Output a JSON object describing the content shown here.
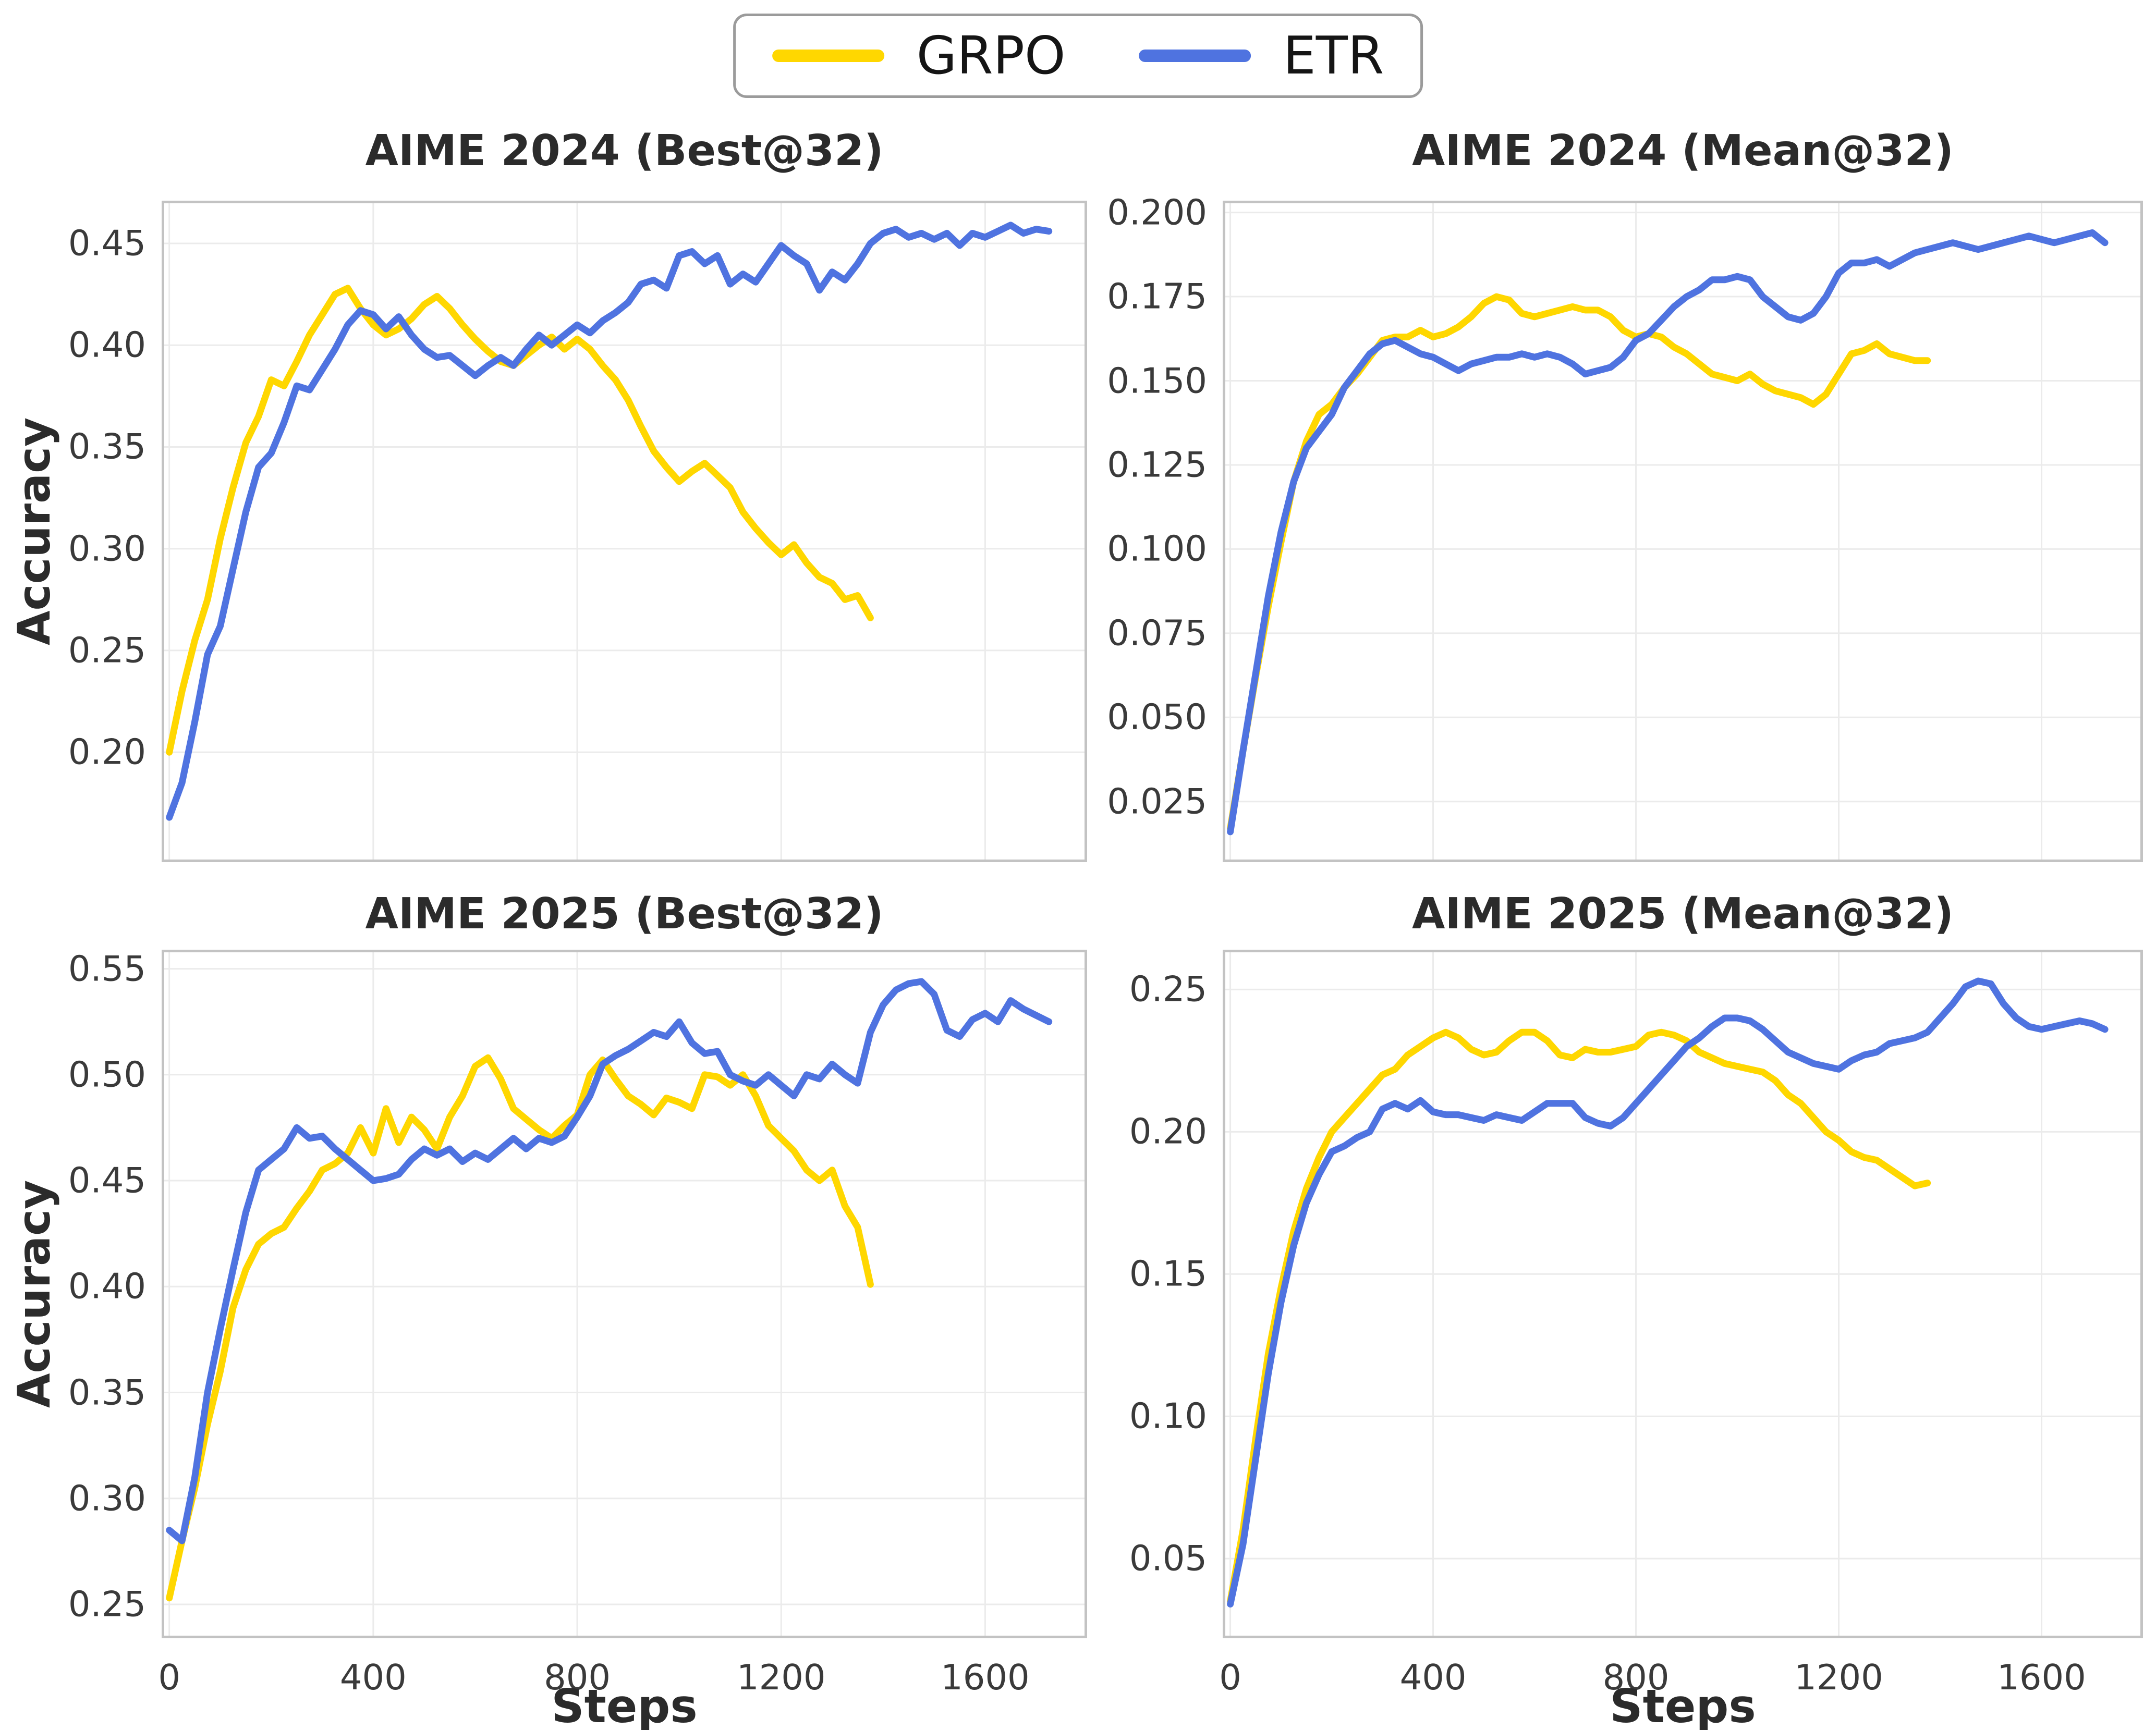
{
  "style": {
    "background": "#ffffff",
    "grid_color": "#ebebeb",
    "spine_color": "#c3c3c3",
    "tick_text_color": "#3a3a3a",
    "title_text_color": "#2b2b2b",
    "accent_grpo": "#FFD700",
    "accent_etr": "#4F73E0"
  },
  "legend": {
    "position": "top-center",
    "items": [
      {
        "label": "GRPO",
        "color": "#FFD700"
      },
      {
        "label": "ETR",
        "color": "#4F73E0"
      }
    ]
  },
  "chart_data": [
    {
      "type": "line",
      "title": "AIME 2024 (Best@32)",
      "ylabel": "Accuracy",
      "grid": true,
      "xlim": [
        -15,
        1800
      ],
      "ylim": [
        0.146,
        0.471
      ],
      "x_ticks": [
        0,
        400,
        800,
        1200,
        1600
      ],
      "x_tick_labels": [
        "0",
        "400",
        "800",
        "1200",
        "1600"
      ],
      "show_x_tick_labels": false,
      "y_ticks": [
        0.2,
        0.25,
        0.3,
        0.35,
        0.4,
        0.45
      ],
      "y_tick_labels": [
        "0.20",
        "0.25",
        "0.30",
        "0.35",
        "0.40",
        "0.45"
      ],
      "x_start": 0,
      "x_step": 25,
      "series": [
        {
          "name": "GRPO",
          "color": "#FFD700",
          "y": [
            0.2,
            0.23,
            0.255,
            0.275,
            0.305,
            0.33,
            0.352,
            0.365,
            0.383,
            0.38,
            0.392,
            0.405,
            0.415,
            0.425,
            0.428,
            0.418,
            0.41,
            0.405,
            0.408,
            0.413,
            0.42,
            0.424,
            0.418,
            0.41,
            0.403,
            0.397,
            0.392,
            0.39,
            0.395,
            0.4,
            0.404,
            0.398,
            0.403,
            0.398,
            0.39,
            0.383,
            0.373,
            0.36,
            0.348,
            0.34,
            0.333,
            0.338,
            0.342,
            0.336,
            0.33,
            0.318,
            0.31,
            0.303,
            0.297,
            0.302,
            0.293,
            0.286,
            0.283,
            0.275,
            0.277,
            0.266
          ]
        },
        {
          "name": "ETR",
          "color": "#4F73E0",
          "y": [
            0.168,
            0.185,
            0.215,
            0.248,
            0.262,
            0.29,
            0.318,
            0.34,
            0.347,
            0.362,
            0.38,
            0.378,
            0.388,
            0.398,
            0.41,
            0.417,
            0.415,
            0.408,
            0.414,
            0.405,
            0.398,
            0.394,
            0.395,
            0.39,
            0.385,
            0.39,
            0.394,
            0.39,
            0.398,
            0.405,
            0.4,
            0.405,
            0.41,
            0.406,
            0.412,
            0.416,
            0.421,
            0.43,
            0.432,
            0.428,
            0.444,
            0.446,
            0.44,
            0.444,
            0.43,
            0.435,
            0.431,
            0.44,
            0.449,
            0.444,
            0.44,
            0.427,
            0.436,
            0.432,
            0.44,
            0.45,
            0.455,
            0.457,
            0.453,
            0.455,
            0.452,
            0.455,
            0.449,
            0.455,
            0.453,
            0.456,
            0.459,
            0.455,
            0.457,
            0.456
          ]
        }
      ]
    },
    {
      "type": "line",
      "title": "AIME 2024 (Mean@32)",
      "grid": true,
      "xlim": [
        -15,
        1800
      ],
      "ylim": [
        0.007,
        0.2035
      ],
      "x_ticks": [
        0,
        400,
        800,
        1200,
        1600
      ],
      "x_tick_labels": [
        "0",
        "400",
        "800",
        "1200",
        "1600"
      ],
      "show_x_tick_labels": false,
      "y_ticks": [
        0.025,
        0.05,
        0.075,
        0.1,
        0.125,
        0.15,
        0.175,
        0.2
      ],
      "y_tick_labels": [
        "0.025",
        "0.050",
        "0.075",
        "0.100",
        "0.125",
        "0.150",
        "0.175",
        "0.200"
      ],
      "x_start": 0,
      "x_step": 25,
      "series": [
        {
          "name": "GRPO",
          "color": "#FFD700",
          "y": [
            0.017,
            0.04,
            0.062,
            0.083,
            0.102,
            0.12,
            0.132,
            0.14,
            0.143,
            0.148,
            0.152,
            0.157,
            0.162,
            0.163,
            0.163,
            0.165,
            0.163,
            0.164,
            0.166,
            0.169,
            0.173,
            0.175,
            0.174,
            0.17,
            0.169,
            0.17,
            0.171,
            0.172,
            0.171,
            0.171,
            0.169,
            0.165,
            0.163,
            0.164,
            0.163,
            0.16,
            0.158,
            0.155,
            0.152,
            0.151,
            0.15,
            0.152,
            0.149,
            0.147,
            0.146,
            0.145,
            0.143,
            0.146,
            0.152,
            0.158,
            0.159,
            0.161,
            0.158,
            0.157,
            0.156,
            0.156
          ]
        },
        {
          "name": "ETR",
          "color": "#4F73E0",
          "y": [
            0.016,
            0.04,
            0.063,
            0.086,
            0.105,
            0.12,
            0.13,
            0.135,
            0.14,
            0.148,
            0.153,
            0.158,
            0.161,
            0.162,
            0.16,
            0.158,
            0.157,
            0.155,
            0.153,
            0.155,
            0.156,
            0.157,
            0.157,
            0.158,
            0.157,
            0.158,
            0.157,
            0.155,
            0.152,
            0.153,
            0.154,
            0.157,
            0.162,
            0.164,
            0.168,
            0.172,
            0.175,
            0.177,
            0.18,
            0.18,
            0.181,
            0.18,
            0.175,
            0.172,
            0.169,
            0.168,
            0.17,
            0.175,
            0.182,
            0.185,
            0.185,
            0.186,
            0.184,
            0.186,
            0.188,
            0.189,
            0.19,
            0.191,
            0.19,
            0.189,
            0.19,
            0.191,
            0.192,
            0.193,
            0.192,
            0.191,
            0.192,
            0.193,
            0.194,
            0.191
          ]
        }
      ]
    },
    {
      "type": "line",
      "title": "AIME 2025 (Best@32)",
      "ylabel": "Accuracy",
      "xlabel": "Steps",
      "grid": true,
      "xlim": [
        -15,
        1800
      ],
      "ylim": [
        0.234,
        0.559
      ],
      "x_ticks": [
        0,
        400,
        800,
        1200,
        1600
      ],
      "x_tick_labels": [
        "0",
        "400",
        "800",
        "1200",
        "1600"
      ],
      "show_x_tick_labels": true,
      "y_ticks": [
        0.25,
        0.3,
        0.35,
        0.4,
        0.45,
        0.5,
        0.55
      ],
      "y_tick_labels": [
        "0.25",
        "0.30",
        "0.35",
        "0.40",
        "0.45",
        "0.50",
        "0.55"
      ],
      "x_start": 0,
      "x_step": 25,
      "series": [
        {
          "name": "GRPO",
          "color": "#FFD700",
          "y": [
            0.253,
            0.28,
            0.305,
            0.335,
            0.36,
            0.39,
            0.408,
            0.42,
            0.425,
            0.428,
            0.437,
            0.445,
            0.455,
            0.458,
            0.463,
            0.475,
            0.463,
            0.484,
            0.468,
            0.48,
            0.474,
            0.465,
            0.48,
            0.49,
            0.504,
            0.508,
            0.498,
            0.484,
            0.479,
            0.474,
            0.47,
            0.476,
            0.481,
            0.5,
            0.507,
            0.498,
            0.49,
            0.486,
            0.481,
            0.489,
            0.487,
            0.484,
            0.5,
            0.499,
            0.495,
            0.5,
            0.49,
            0.476,
            0.47,
            0.464,
            0.455,
            0.45,
            0.455,
            0.438,
            0.428,
            0.401
          ]
        },
        {
          "name": "ETR",
          "color": "#4F73E0",
          "y": [
            0.285,
            0.28,
            0.31,
            0.35,
            0.38,
            0.408,
            0.435,
            0.455,
            0.46,
            0.465,
            0.475,
            0.47,
            0.471,
            0.465,
            0.46,
            0.455,
            0.45,
            0.451,
            0.453,
            0.46,
            0.465,
            0.462,
            0.465,
            0.459,
            0.463,
            0.46,
            0.465,
            0.47,
            0.465,
            0.47,
            0.468,
            0.471,
            0.48,
            0.49,
            0.505,
            0.509,
            0.512,
            0.516,
            0.52,
            0.518,
            0.525,
            0.515,
            0.51,
            0.511,
            0.5,
            0.497,
            0.495,
            0.5,
            0.495,
            0.49,
            0.5,
            0.498,
            0.505,
            0.5,
            0.496,
            0.52,
            0.533,
            0.54,
            0.543,
            0.544,
            0.538,
            0.521,
            0.518,
            0.526,
            0.529,
            0.525,
            0.535,
            0.531,
            0.528,
            0.525
          ]
        }
      ]
    },
    {
      "type": "line",
      "title": "AIME 2025 (Mean@32)",
      "xlabel": "Steps",
      "grid": true,
      "xlim": [
        -15,
        1800
      ],
      "ylim": [
        0.022,
        0.264
      ],
      "x_ticks": [
        0,
        400,
        800,
        1200,
        1600
      ],
      "x_tick_labels": [
        "0",
        "400",
        "800",
        "1200",
        "1600"
      ],
      "show_x_tick_labels": true,
      "y_ticks": [
        0.05,
        0.1,
        0.15,
        0.2,
        0.25
      ],
      "y_tick_labels": [
        "0.05",
        "0.10",
        "0.15",
        "0.20",
        "0.25"
      ],
      "x_start": 0,
      "x_step": 25,
      "series": [
        {
          "name": "GRPO",
          "color": "#FFD700",
          "y": [
            0.035,
            0.06,
            0.092,
            0.122,
            0.145,
            0.165,
            0.18,
            0.191,
            0.2,
            0.205,
            0.21,
            0.215,
            0.22,
            0.222,
            0.227,
            0.23,
            0.233,
            0.235,
            0.233,
            0.229,
            0.227,
            0.228,
            0.232,
            0.235,
            0.235,
            0.232,
            0.227,
            0.226,
            0.229,
            0.228,
            0.228,
            0.229,
            0.23,
            0.234,
            0.235,
            0.234,
            0.232,
            0.228,
            0.226,
            0.224,
            0.223,
            0.222,
            0.221,
            0.218,
            0.213,
            0.21,
            0.205,
            0.2,
            0.197,
            0.193,
            0.191,
            0.19,
            0.187,
            0.184,
            0.181,
            0.182
          ]
        },
        {
          "name": "ETR",
          "color": "#4F73E0",
          "y": [
            0.034,
            0.055,
            0.085,
            0.115,
            0.14,
            0.16,
            0.175,
            0.185,
            0.193,
            0.195,
            0.198,
            0.2,
            0.208,
            0.21,
            0.208,
            0.211,
            0.207,
            0.206,
            0.206,
            0.205,
            0.204,
            0.206,
            0.205,
            0.204,
            0.207,
            0.21,
            0.21,
            0.21,
            0.205,
            0.203,
            0.202,
            0.205,
            0.21,
            0.215,
            0.22,
            0.225,
            0.23,
            0.233,
            0.237,
            0.24,
            0.24,
            0.239,
            0.236,
            0.232,
            0.228,
            0.226,
            0.224,
            0.223,
            0.222,
            0.225,
            0.227,
            0.228,
            0.231,
            0.232,
            0.233,
            0.235,
            0.24,
            0.245,
            0.251,
            0.253,
            0.252,
            0.245,
            0.24,
            0.237,
            0.236,
            0.237,
            0.238,
            0.239,
            0.238,
            0.236
          ]
        }
      ]
    }
  ]
}
